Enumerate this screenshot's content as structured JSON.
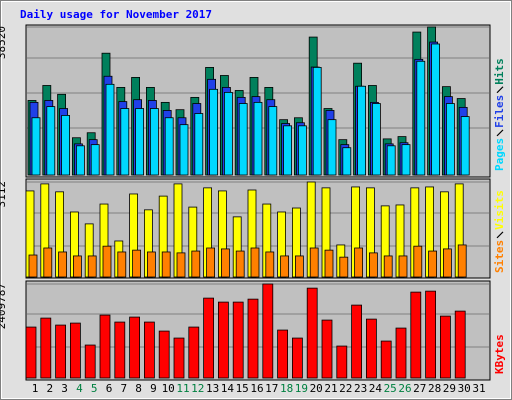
{
  "chart_data": [
    {
      "type": "bar",
      "title": "Daily usage for November 2017",
      "ylim": [
        0,
        38520
      ],
      "yticks": [
        38520
      ],
      "series": [
        {
          "name": "Hits",
          "color": "#00805c",
          "values": [
            19400,
            23300,
            21000,
            9700,
            11000,
            31700,
            22800,
            25400,
            22800,
            18900,
            17000,
            20200,
            28000,
            25900,
            22000,
            25400,
            22800,
            14400,
            14900,
            35900,
            17300,
            9200,
            29100,
            23300,
            9400,
            10000,
            37200,
            38520,
            23000,
            19900,
            null
          ]
        },
        {
          "name": "Files",
          "color": "#2040e8",
          "values": [
            18900,
            19400,
            17300,
            8100,
            9200,
            25700,
            19100,
            19600,
            19400,
            16800,
            14900,
            18600,
            24900,
            22800,
            20200,
            20400,
            19600,
            13400,
            13600,
            28100,
            16800,
            7900,
            23100,
            18900,
            8100,
            8400,
            30100,
            34600,
            20400,
            17600,
            null
          ]
        },
        {
          "name": "Pages",
          "color": "#00d8ff",
          "values": [
            14900,
            17800,
            15500,
            7600,
            7900,
            23600,
            17300,
            17300,
            17300,
            14900,
            13100,
            16000,
            22300,
            21500,
            18600,
            18900,
            17800,
            12800,
            12800,
            28000,
            14400,
            7100,
            23100,
            18600,
            7600,
            7900,
            29600,
            34100,
            18600,
            15200,
            null
          ]
        }
      ]
    },
    {
      "type": "bar",
      "ylim": [
        0,
        3112
      ],
      "yticks": [
        3112
      ],
      "series": [
        {
          "name": "Visits",
          "color": "#ffff00",
          "values": [
            2820,
            3050,
            2790,
            2130,
            1740,
            2390,
            1180,
            2720,
            2200,
            2650,
            3050,
            2290,
            2920,
            2820,
            1970,
            2850,
            2390,
            2130,
            2260,
            3112,
            2920,
            1050,
            2950,
            2920,
            2330,
            2360,
            2920,
            2950,
            2790,
            3050,
            null
          ]
        },
        {
          "name": "Sites",
          "color": "#ff8000",
          "values": [
            720,
            950,
            820,
            690,
            690,
            1010,
            820,
            880,
            820,
            820,
            790,
            850,
            950,
            920,
            850,
            950,
            820,
            690,
            690,
            950,
            880,
            650,
            950,
            790,
            690,
            690,
            1010,
            850,
            920,
            1050,
            null
          ]
        }
      ]
    },
    {
      "type": "bar",
      "ylim": [
        0,
        2409787
      ],
      "yticks": [
        2409787
      ],
      "categories": [
        "1",
        "2",
        "3",
        "4",
        "5",
        "6",
        "7",
        "8",
        "9",
        "10",
        "11",
        "12",
        "13",
        "14",
        "15",
        "16",
        "17",
        "18",
        "19",
        "20",
        "21",
        "22",
        "23",
        "24",
        "25",
        "26",
        "27",
        "28",
        "29",
        "30",
        "31"
      ],
      "category_colors": [
        "#000000",
        "#000000",
        "#000000",
        "#008040",
        "#008040",
        "#000000",
        "#000000",
        "#000000",
        "#000000",
        "#000000",
        "#008040",
        "#008040",
        "#000000",
        "#000000",
        "#000000",
        "#000000",
        "#000000",
        "#008040",
        "#008040",
        "#000000",
        "#000000",
        "#000000",
        "#000000",
        "#000000",
        "#008040",
        "#008040",
        "#000000",
        "#000000",
        "#000000",
        "#000000",
        "#000000"
      ],
      "series": [
        {
          "name": "KBytes",
          "color": "#ff0000",
          "values": [
            1306000,
            1536000,
            1357000,
            1408000,
            845000,
            1613000,
            1434000,
            1562000,
            1434000,
            1203000,
            1024000,
            1306000,
            2048000,
            1946000,
            1946000,
            2022000,
            2409787,
            1229000,
            1024000,
            2304000,
            1485000,
            819000,
            1869000,
            1510000,
            947000,
            1280000,
            2202000,
            2227000,
            1587000,
            1715000,
            null
          ]
        }
      ]
    }
  ]
}
